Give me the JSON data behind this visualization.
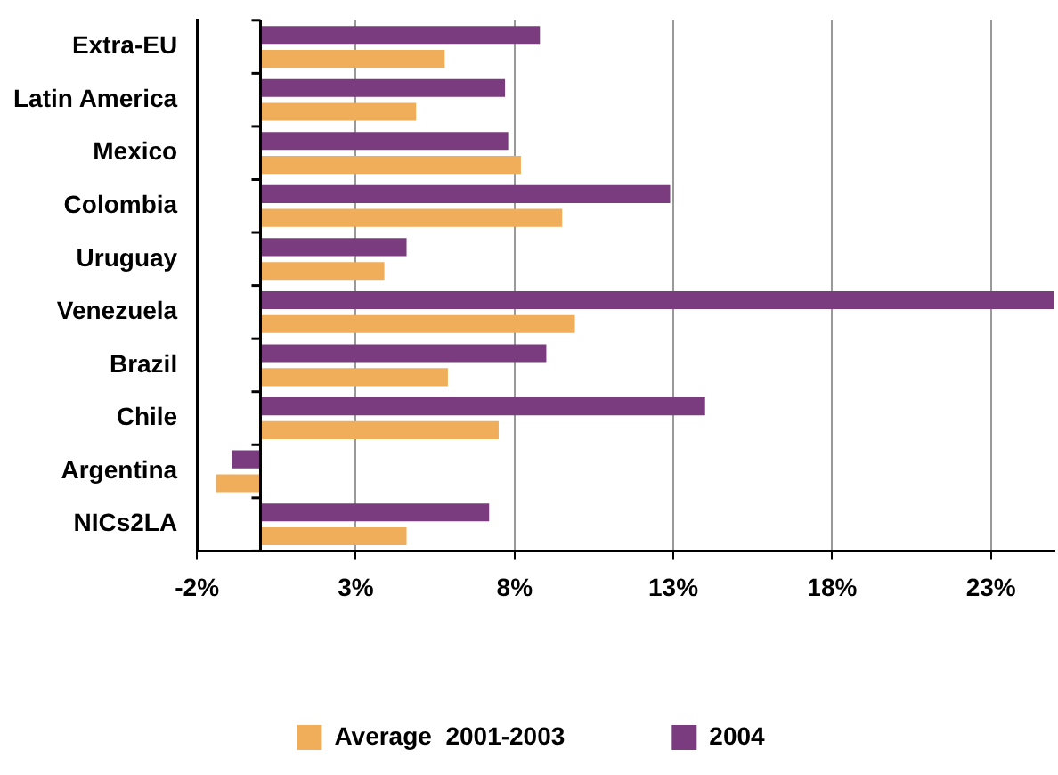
{
  "chart_data": {
    "type": "bar",
    "orientation": "horizontal",
    "categories": [
      "Extra-EU",
      "Latin America",
      "Mexico",
      "Colombia",
      "Uruguay",
      "Venezuela",
      "Brazil",
      "Chile",
      "Argentina",
      "NICs2LA"
    ],
    "series": [
      {
        "name": "2004",
        "color": "#7b3b7f",
        "values": [
          8.8,
          7.7,
          7.8,
          12.9,
          4.6,
          25,
          9.0,
          14.0,
          -0.9,
          7.2
        ]
      },
      {
        "name": "Average  2001-2003",
        "color": "#f0ad5a",
        "values": [
          5.8,
          4.9,
          8.2,
          9.5,
          3.9,
          9.9,
          5.9,
          7.5,
          -1.4,
          4.6
        ]
      }
    ],
    "xlim": [
      -2,
      25
    ],
    "xticks": [
      {
        "value": -2,
        "label": "-2%"
      },
      {
        "value": 3,
        "label": "3%"
      },
      {
        "value": 8,
        "label": "8%"
      },
      {
        "value": 13,
        "label": "13%"
      },
      {
        "value": 18,
        "label": "18%"
      },
      {
        "value": 23,
        "label": "23%"
      }
    ],
    "grid": "x",
    "legend": "bottom"
  }
}
